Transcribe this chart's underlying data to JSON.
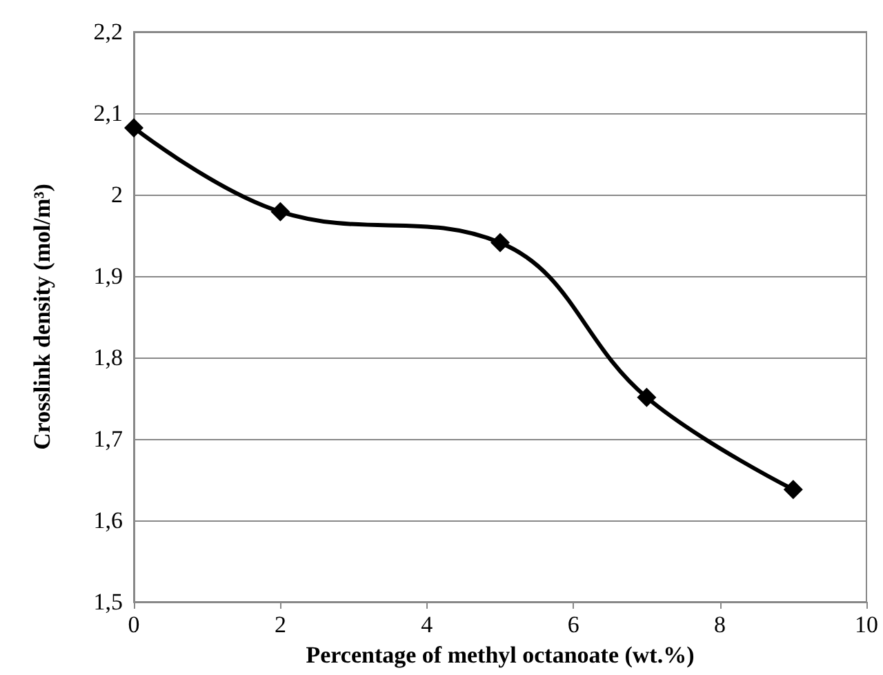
{
  "chart_data": {
    "type": "line",
    "xlabel": "Percentage of methyl octanoate (wt.%)",
    "ylabel": "Crosslink density (mol/m³)",
    "x": [
      0,
      2,
      5,
      7,
      9
    ],
    "series": [
      {
        "color": "#000000",
        "values": [
          2.082,
          1.979,
          1.941,
          1.751,
          1.638
        ]
      }
    ],
    "xlim": [
      0,
      10
    ],
    "xticks": [
      0,
      2,
      4,
      6,
      8,
      10
    ],
    "ylim": [
      1.5,
      2.2
    ],
    "yticks": [
      {
        "value": 1.5,
        "label": "1,5"
      },
      {
        "value": 1.6,
        "label": "1,6"
      },
      {
        "value": 1.7,
        "label": "1,7"
      },
      {
        "value": 1.8,
        "label": "1,8"
      },
      {
        "value": 1.9,
        "label": "1,9"
      },
      {
        "value": 2,
        "label": "2"
      },
      {
        "value": 2.1,
        "label": "2,1"
      },
      {
        "value": 2.2,
        "label": "2,2"
      }
    ],
    "grid": "y",
    "marker": "diamond",
    "line_style": "solid"
  }
}
